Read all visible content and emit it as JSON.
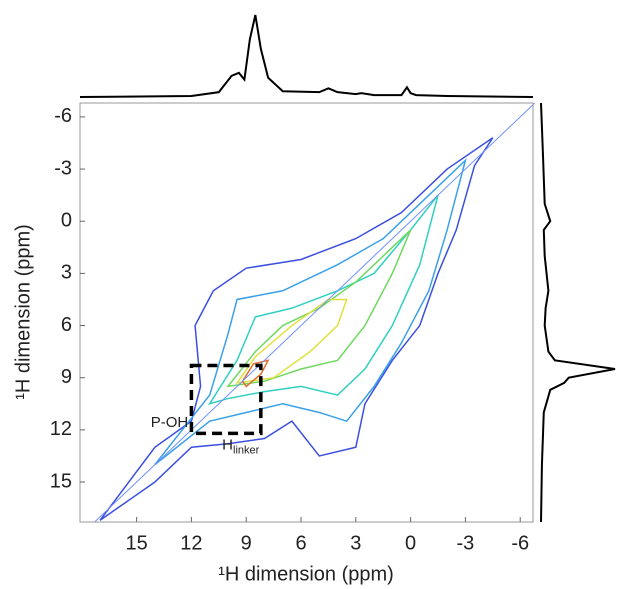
{
  "chart_data": {
    "type": "contour",
    "xlabel": "¹H dimension (ppm)",
    "ylabel": "¹H dimension (ppm)",
    "xlim": [
      18.1,
      -6.7
    ],
    "ylim": [
      -6.8,
      17.3
    ],
    "xticks": [
      15,
      12,
      9,
      6,
      3,
      0,
      -3,
      -6
    ],
    "yticks": [
      -6,
      -3,
      0,
      3,
      6,
      9,
      12,
      15
    ],
    "contours": [
      {
        "color": "#3b4fe0",
        "x": [
          17,
          14,
          12,
          11.5,
          11.8,
          10.8,
          9,
          6,
          3,
          0.5,
          -2,
          -4.5,
          -3.5,
          -2.5,
          -1.5,
          -0.5,
          1,
          2.5,
          3,
          5,
          6.5,
          8,
          10,
          12,
          14
        ],
        "y": [
          17.2,
          13,
          11.5,
          9.5,
          6,
          4,
          2.7,
          2.2,
          1,
          -0.5,
          -3,
          -4.8,
          -3.2,
          0.5,
          3,
          6,
          8,
          10.5,
          13,
          13.5,
          11.5,
          12.5,
          12.8,
          13,
          15
        ]
      },
      {
        "color": "#3aa0e8",
        "x": [
          14,
          11,
          10,
          9.5,
          7,
          4,
          1.5,
          -1,
          -3,
          -2,
          -1,
          0.5,
          2,
          3.5,
          5,
          7,
          9,
          11
        ],
        "y": [
          14,
          10,
          6.5,
          4.5,
          4,
          2.5,
          1,
          -1.5,
          -3.5,
          0.5,
          4,
          7,
          9.5,
          11.5,
          11,
          10.5,
          11,
          11.5
        ]
      },
      {
        "color": "#30d0c0",
        "x": [
          11,
          9.5,
          8.5,
          6.5,
          4,
          2,
          0,
          -1.5,
          -0.5,
          1,
          2.5,
          4,
          6,
          8,
          10
        ],
        "y": [
          10.5,
          8,
          5.5,
          5,
          4,
          3,
          0.5,
          -1.5,
          2.5,
          6,
          8.5,
          10,
          9.5,
          9.8,
          10.2
        ]
      },
      {
        "color": "#70d860",
        "x": [
          10,
          8.5,
          7,
          5,
          3,
          1,
          0,
          1,
          2.5,
          4,
          6,
          8
        ],
        "y": [
          9.5,
          7.5,
          6,
          5,
          3.5,
          1.5,
          0.5,
          3,
          6,
          8,
          8.5,
          9.2
        ]
      },
      {
        "color": "#e0e040",
        "x": [
          9.5,
          8.5,
          6.5,
          4.5,
          3.5,
          4,
          5.5,
          7.5
        ],
        "y": [
          9.3,
          7.8,
          6,
          4.5,
          4.5,
          6,
          7.5,
          9
        ]
      },
      {
        "color": "#e07030",
        "x": [
          9.2,
          8.6,
          7.8,
          8.2,
          9
        ],
        "y": [
          9.2,
          8.2,
          8,
          8.8,
          9.5
        ]
      }
    ],
    "highlight_box": {
      "x": [
        12,
        8.2
      ],
      "y": [
        8.3,
        12.2
      ]
    },
    "annotations": [
      {
        "text": "P-OH",
        "x": 13.2,
        "y": 11.6
      },
      {
        "text": "H",
        "sub": "linker",
        "x": 9.3,
        "y": 12.9
      }
    ],
    "top_projection": {
      "x": [
        18.1,
        12,
        10.5,
        9.8,
        9.4,
        9.1,
        8.8,
        8.5,
        8.2,
        7.8,
        7,
        5,
        4.5,
        4,
        3,
        2.7,
        2,
        0.5,
        0.2,
        0,
        -0.3,
        -2,
        -6.7
      ],
      "values": [
        0,
        1,
        5,
        22,
        25,
        18,
        60,
        85,
        50,
        20,
        6,
        5,
        9,
        5,
        3,
        4,
        2,
        2,
        10,
        4,
        2,
        1,
        0
      ]
    },
    "right_projection": {
      "y": [
        -6.8,
        -4,
        -1,
        0,
        0.5,
        2,
        4,
        5,
        6,
        7.5,
        8,
        8.5,
        9,
        9.3,
        9.7,
        11,
        14,
        17.3
      ],
      "values": [
        0,
        2,
        4,
        10,
        3,
        4,
        8,
        5,
        4,
        8,
        15,
        80,
        30,
        25,
        10,
        3,
        1,
        0
      ]
    }
  }
}
